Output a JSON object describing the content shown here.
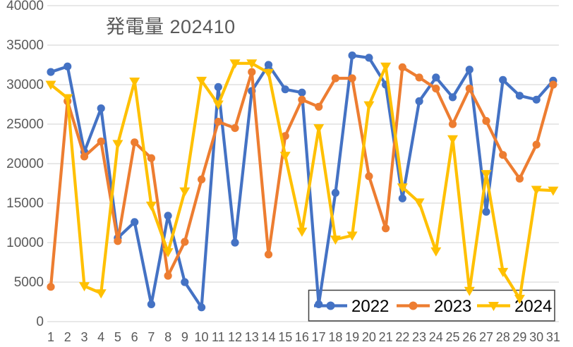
{
  "chart_data": {
    "type": "line",
    "title": "発電量 202410",
    "xlabel": "",
    "ylabel": "",
    "ylim": [
      0,
      40000
    ],
    "y_ticks": [
      0,
      5000,
      10000,
      15000,
      20000,
      25000,
      30000,
      35000,
      40000
    ],
    "grid": true,
    "legend_position": "bottom-right-overlay",
    "categories": [
      1,
      2,
      3,
      4,
      5,
      6,
      7,
      8,
      9,
      10,
      11,
      12,
      13,
      14,
      15,
      16,
      17,
      18,
      19,
      20,
      21,
      22,
      23,
      24,
      25,
      26,
      27,
      28,
      29,
      30,
      31
    ],
    "series": [
      {
        "name": "2022",
        "color": "#4472C4",
        "marker": "circle",
        "values": [
          31600,
          32300,
          21500,
          27000,
          10600,
          12600,
          2200,
          13400,
          5000,
          1800,
          29700,
          10000,
          29200,
          32500,
          29400,
          29000,
          2200,
          16300,
          33700,
          33400,
          30000,
          15600,
          27900,
          30900,
          28400,
          31900,
          13900,
          30600,
          28600,
          28100,
          30500
        ]
      },
      {
        "name": "2023",
        "color": "#ED7D31",
        "marker": "circle",
        "values": [
          4400,
          27900,
          20900,
          22800,
          10200,
          22700,
          20700,
          5800,
          10100,
          18000,
          25300,
          24500,
          31600,
          8500,
          23500,
          28100,
          27200,
          30800,
          30800,
          18400,
          11800,
          32200,
          30900,
          29500,
          25000,
          29500,
          25400,
          21100,
          18100,
          22400,
          30000
        ]
      },
      {
        "name": "2024",
        "color": "#FFC000",
        "marker": "triangle-down",
        "values": [
          30000,
          28300,
          4500,
          3600,
          22500,
          30400,
          14700,
          8800,
          16500,
          30500,
          27500,
          32700,
          32700,
          31500,
          21000,
          11400,
          24500,
          10400,
          10900,
          27400,
          32300,
          17000,
          15100,
          8900,
          23100,
          3900,
          18700,
          6300,
          2900,
          16700,
          16600
        ]
      }
    ]
  },
  "colors": {
    "background": "#FFFFFF",
    "gridline": "#D9D9D9",
    "axis_text": "#595959",
    "title_text": "#595959",
    "legend_text": "#000000",
    "legend_border": "#404040",
    "legend_fill": "#FFFFFF"
  }
}
